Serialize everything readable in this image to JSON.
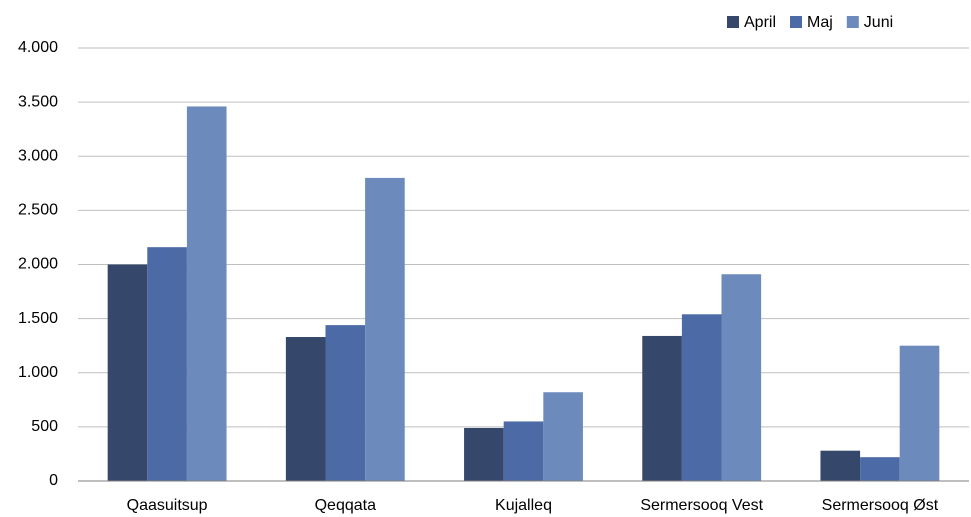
{
  "chart_data": {
    "type": "bar",
    "categories": [
      "Qaasuitsup",
      "Qeqqata",
      "Kujalleq",
      "Sermersooq Vest",
      "Sermersooq Øst"
    ],
    "series": [
      {
        "name": "April",
        "color": "#35486b",
        "values": [
          2000,
          1330,
          490,
          1340,
          280
        ]
      },
      {
        "name": "Maj",
        "color": "#4c6aa5",
        "values": [
          2160,
          1440,
          550,
          1540,
          220
        ]
      },
      {
        "name": "Juni",
        "color": "#6c8abc",
        "values": [
          3460,
          2800,
          820,
          1910,
          1250
        ]
      }
    ],
    "ylim": [
      0,
      4000
    ],
    "yticks": [
      0,
      500,
      {
        "value": 1000,
        "label": "1.000"
      },
      {
        "value": 1500,
        "label": "1.500"
      },
      {
        "value": 2000,
        "label": "2.000"
      },
      {
        "value": 2500,
        "label": "2.500"
      },
      {
        "value": 3000,
        "label": "3.000"
      },
      {
        "value": 3500,
        "label": "3.500"
      },
      {
        "value": 4000,
        "label": "4.000"
      }
    ],
    "grid": true,
    "legend": "top-right"
  }
}
